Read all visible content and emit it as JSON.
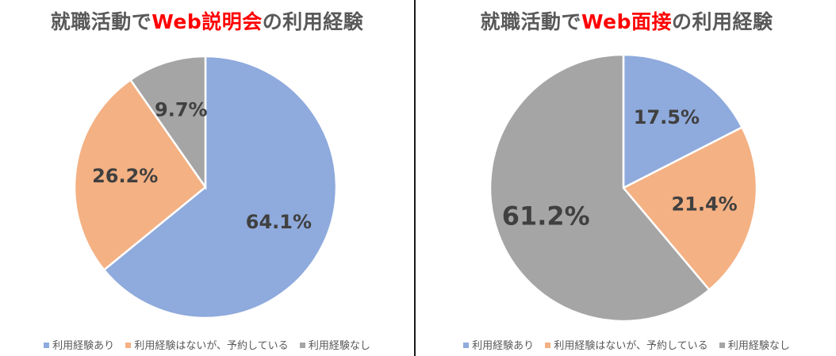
{
  "colors": {
    "used": "#8FAADC",
    "reserved": "#F4B183",
    "not_used": "#A5A5A5",
    "title_highlight": "#FF0000",
    "title_text": "#595959"
  },
  "legend": {
    "used": "利用経験あり",
    "reserved": "利用経験はないが、予約している",
    "not_used": "利用経験なし"
  },
  "panels": {
    "left": {
      "title_pre": "就職活動で",
      "title_hl": "Web説明会",
      "title_post": "の利用経験"
    },
    "right": {
      "title_pre": "就職活動で",
      "title_hl": "Web面接",
      "title_post": "の利用経験"
    }
  },
  "chart_data": [
    {
      "type": "pie",
      "title": "就職活動でWeb説明会の利用経験",
      "categories": [
        "利用経験あり",
        "利用経験はないが、予約している",
        "利用経験なし"
      ],
      "values": [
        64.1,
        26.2,
        9.7
      ],
      "labels": [
        "64.1%",
        "26.2%",
        "9.7%"
      ],
      "legend_position": "bottom"
    },
    {
      "type": "pie",
      "title": "就職活動でWeb面接の利用経験",
      "categories": [
        "利用経験あり",
        "利用経験はないが、予約している",
        "利用経験なし"
      ],
      "values": [
        17.5,
        21.4,
        61.2
      ],
      "labels": [
        "17.5%",
        "21.4%",
        "61.2%"
      ],
      "legend_position": "bottom"
    }
  ]
}
